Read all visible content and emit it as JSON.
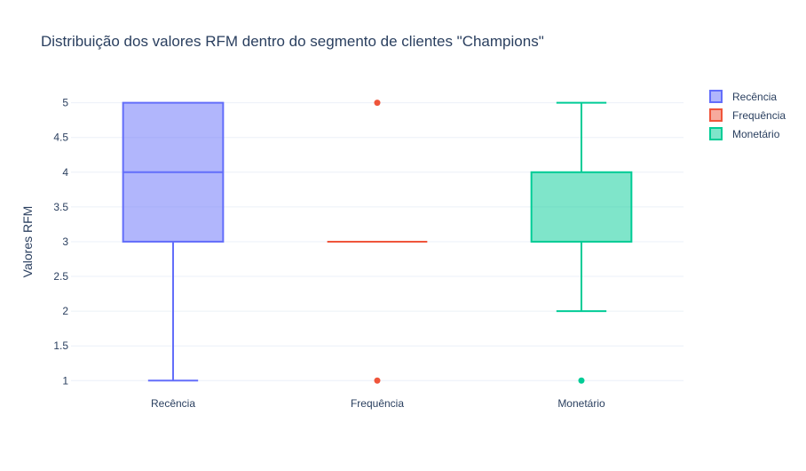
{
  "chart_data": {
    "type": "box",
    "title": "Distribuição dos valores RFM dentro do segmento de clientes \"Champions\"",
    "ylabel": "Valores RFM",
    "xlabel": "",
    "ylim": [
      0.85,
      5.2
    ],
    "y_ticks": [
      "1",
      "1.5",
      "2",
      "2.5",
      "3",
      "3.5",
      "4",
      "4.5",
      "5"
    ],
    "y_tick_values": [
      1,
      1.5,
      2,
      2.5,
      3,
      3.5,
      4,
      4.5,
      5
    ],
    "grid": true,
    "legend_position": "top-right",
    "categories": [
      "Recência",
      "Frequência",
      "Monetário"
    ],
    "series": [
      {
        "name": "Recência",
        "color": "#636efa",
        "fill": "rgba(99,110,250,0.5)",
        "min": 1,
        "q1": 3,
        "median": 4,
        "q3": 5,
        "max": 5,
        "outliers": []
      },
      {
        "name": "Frequência",
        "color": "#ef553b",
        "fill": "rgba(239,85,59,0.5)",
        "min": 3,
        "q1": 3,
        "median": 3,
        "q3": 3,
        "max": 3,
        "outliers": [
          5,
          1
        ]
      },
      {
        "name": "Monetário",
        "color": "#00cc96",
        "fill": "rgba(0,204,150,0.5)",
        "min": 2,
        "q1": 3,
        "median": 3,
        "q3": 4,
        "max": 5,
        "outliers": [
          1
        ]
      }
    ]
  }
}
